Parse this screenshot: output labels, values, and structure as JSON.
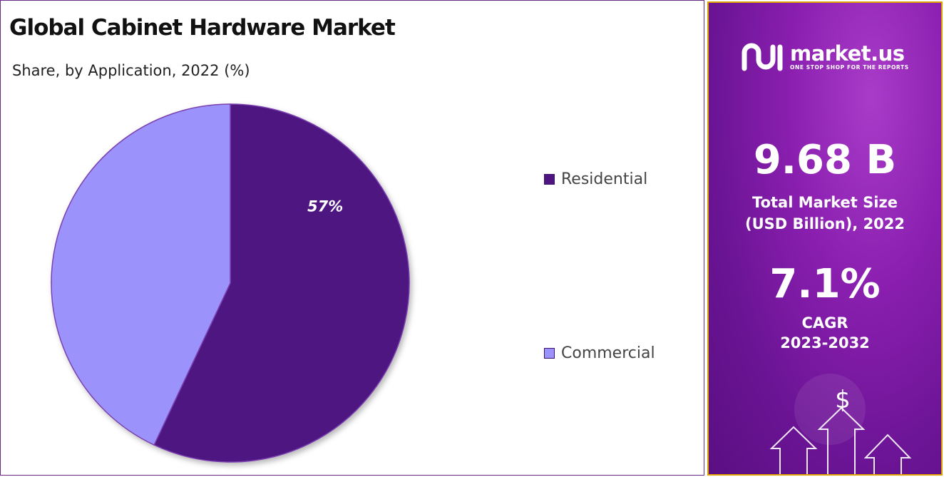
{
  "chart_data": {
    "type": "pie",
    "title": "Global Cabinet Hardware Market",
    "subtitle": "Share, by Application, 2022 (%)",
    "slices": [
      {
        "label": "Residential",
        "value": 57,
        "color": "#4e1580",
        "data_label": "57%"
      },
      {
        "label": "Commercial",
        "value": 43,
        "color": "#9b93fb",
        "data_label": ""
      }
    ],
    "legend_position": "right"
  },
  "brand": {
    "name": "market.us",
    "tagline": "ONE STOP SHOP FOR THE REPORTS"
  },
  "stats": {
    "market_size_value": "9.68 B",
    "market_size_label_1": "Total Market Size",
    "market_size_label_2": "(USD Billion), 2022",
    "cagr_value": "7.1%",
    "cagr_label_1": "CAGR",
    "cagr_label_2": "2023-2032"
  },
  "decor": {
    "dollar_symbol": "$",
    "icons": [
      "market-us-logo-icon",
      "dollar-icon",
      "growth-arrow-icon"
    ]
  },
  "colors": {
    "panel_accent": "#8b1fb0",
    "panel_border": "#e0a400"
  }
}
